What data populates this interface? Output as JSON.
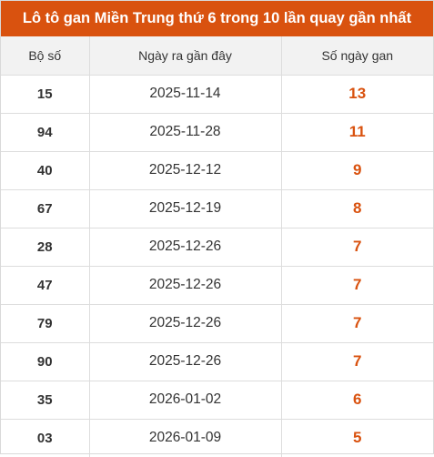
{
  "title": "Lô tô gan Miền Trung thứ 6 trong 10 lần quay gần nhất",
  "colors": {
    "title_bg": "#d9520f",
    "accent_text": "#d9520f",
    "header_bg": "#f2f2f2"
  },
  "table": {
    "headers": [
      "Bộ số",
      "Ngày ra gần đây",
      "Số ngày gan"
    ],
    "rows": [
      [
        "15",
        "2025-11-14",
        "13"
      ],
      [
        "94",
        "2025-11-28",
        "11"
      ],
      [
        "40",
        "2025-12-12",
        "9"
      ],
      [
        "67",
        "2025-12-19",
        "8"
      ],
      [
        "28",
        "2025-12-26",
        "7"
      ],
      [
        "47",
        "2025-12-26",
        "7"
      ],
      [
        "79",
        "2025-12-26",
        "7"
      ],
      [
        "90",
        "2025-12-26",
        "7"
      ],
      [
        "35",
        "2026-01-02",
        "6"
      ],
      [
        "03",
        "2026-01-09",
        "5"
      ]
    ]
  }
}
